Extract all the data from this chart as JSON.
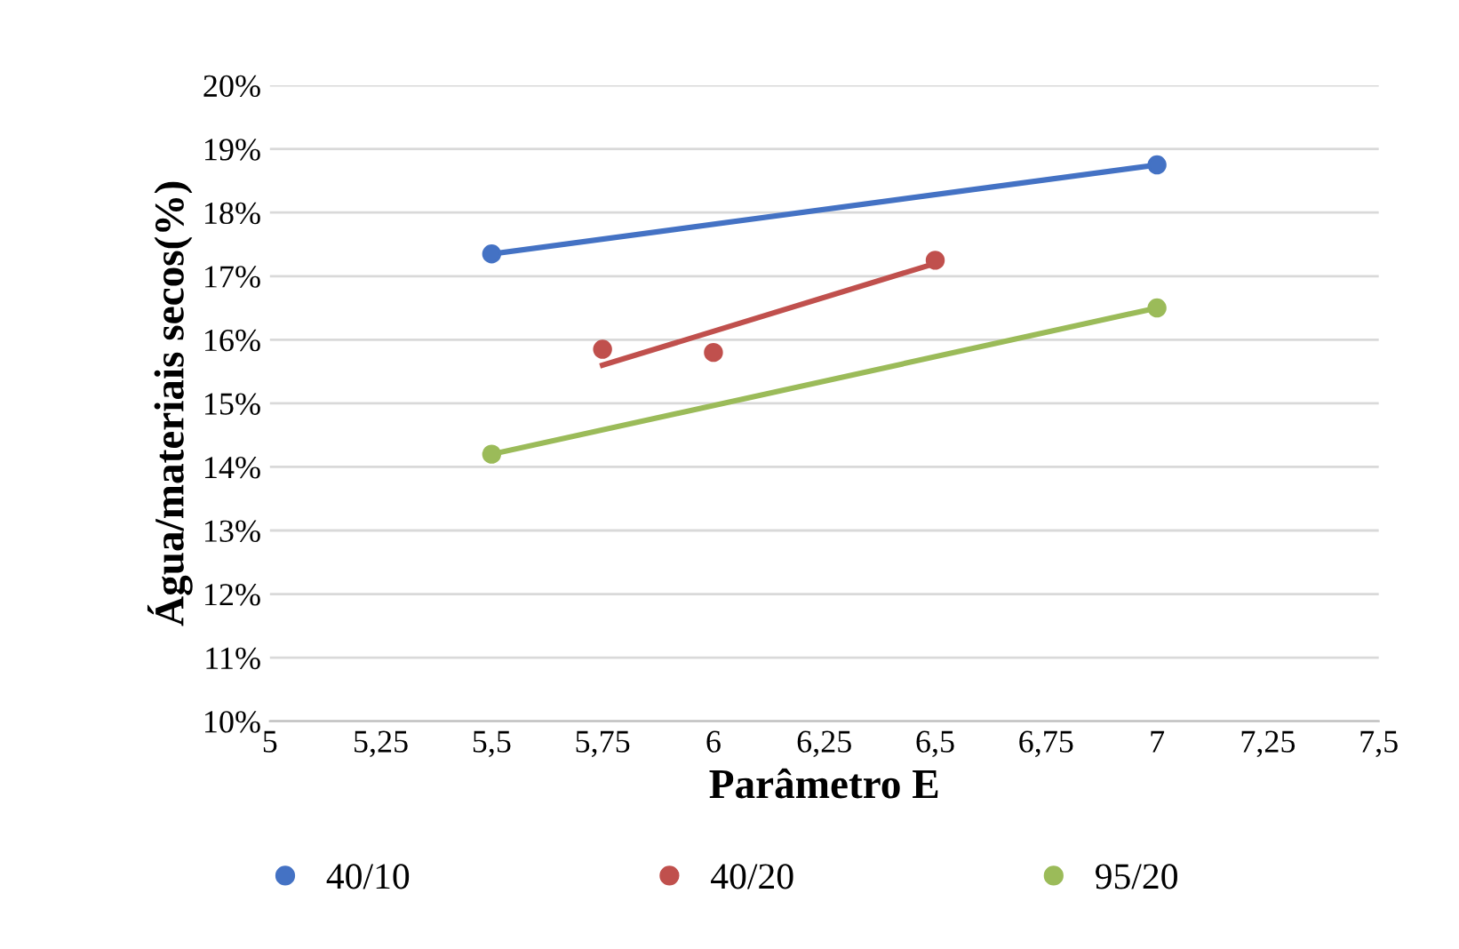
{
  "chart_data": {
    "type": "scatter",
    "xlabel": "Parâmetro E",
    "ylabel": "Água/materiais secos(%)",
    "xlim": [
      5,
      7.5
    ],
    "ylim": [
      10,
      20
    ],
    "xticks": [
      5,
      {
        "value": 5.25,
        "label": "5,25"
      },
      {
        "value": 5.5,
        "label": "5,5"
      },
      {
        "value": 5.75,
        "label": "5,75"
      },
      6,
      {
        "value": 6.25,
        "label": "6,25"
      },
      {
        "value": 6.5,
        "label": "6,5"
      },
      {
        "value": 6.75,
        "label": "6,75"
      },
      7,
      {
        "value": 7.25,
        "label": "7,25"
      },
      {
        "value": 7.5,
        "label": "7,5"
      }
    ],
    "yticks": [
      {
        "value": 10,
        "label": "10%"
      },
      {
        "value": 11,
        "label": "11%"
      },
      {
        "value": 12,
        "label": "12%"
      },
      {
        "value": 13,
        "label": "13%"
      },
      {
        "value": 14,
        "label": "14%"
      },
      {
        "value": 15,
        "label": "15%"
      },
      {
        "value": 16,
        "label": "16%"
      },
      {
        "value": 17,
        "label": "17%"
      },
      {
        "value": 18,
        "label": "18%"
      },
      {
        "value": 19,
        "label": "19%"
      },
      {
        "value": 20,
        "label": "20%"
      }
    ],
    "grid": "y",
    "legend": "bottom",
    "marker": "circle",
    "series": [
      {
        "name": "40/10",
        "color": "#4472c4",
        "x": [
          5.5,
          7
        ],
        "values": [
          17.35,
          18.75
        ]
      },
      {
        "name": "40/20",
        "color": "#c0504d",
        "x": [
          5.75,
          6,
          6.5
        ],
        "values": [
          15.85,
          15.8,
          17.25
        ]
      },
      {
        "name": "95/20",
        "color": "#9bbb59",
        "x": [
          5.5,
          7
        ],
        "values": [
          14.2,
          16.5
        ]
      },
      {
        "type": "line",
        "marker": "none",
        "color": "#4472c4",
        "x": [
          5.5,
          7
        ],
        "values": [
          17.35,
          18.75
        ]
      },
      {
        "type": "line",
        "marker": "none",
        "color": "#c0504d",
        "x": [
          5.75,
          6.5
        ],
        "values": [
          15.6,
          17.2
        ]
      },
      {
        "type": "line",
        "marker": "none",
        "color": "#9bbb59",
        "x": [
          5.5,
          7
        ],
        "values": [
          14.2,
          16.5
        ]
      }
    ]
  }
}
